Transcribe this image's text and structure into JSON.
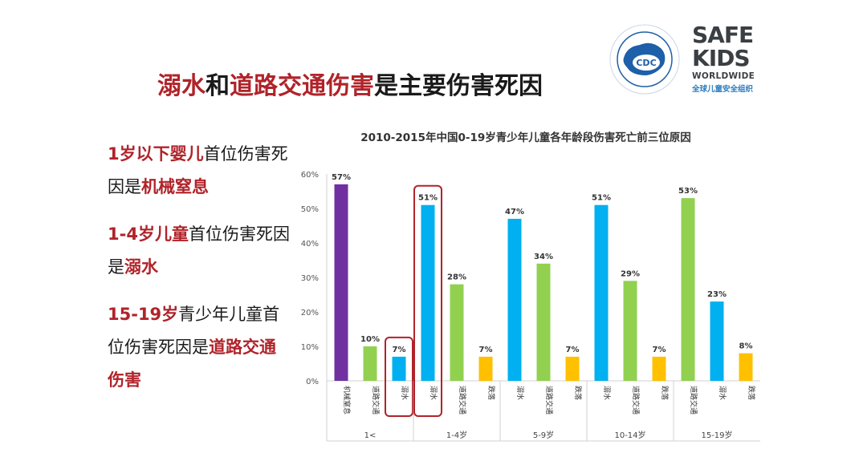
{
  "slide": {
    "title_part1": "溺水",
    "title_part2": "和",
    "title_part3": "道路交通伤害",
    "title_part4": "是主要伤害死因"
  },
  "logos": {
    "cdc_text": "CDC",
    "safekids_line1": "SAFE",
    "safekids_line2": "KIDS",
    "safekids_line3": "WORLDWIDE",
    "safekids_line4": "全球儿童安全组织"
  },
  "left_points": [
    [
      {
        "t": "1岁以下婴儿",
        "red": true
      },
      {
        "t": "首位伤害死因是",
        "red": false
      },
      {
        "t": "机械窒息",
        "red": true
      }
    ],
    [
      {
        "t": "1-4岁儿童",
        "red": true
      },
      {
        "t": "首位伤害死因是",
        "red": false
      },
      {
        "t": "溺水",
        "red": true
      }
    ],
    [
      {
        "t": "15-19岁",
        "red": true
      },
      {
        "t": "青少年儿童首位伤害死因是",
        "red": false
      },
      {
        "t": "道路交通伤害",
        "red": true
      }
    ]
  ],
  "colors": {
    "accent_red": "#b0232a",
    "mechanical": "#7030a0",
    "road": "#92d050",
    "drowning": "#00b0f0",
    "fall": "#ffc000"
  },
  "chart_data": {
    "type": "bar",
    "title": "2010-2015年中国0-19岁青少年儿童各年龄段伤害死亡前三位原因",
    "yticks": [
      "0%",
      "10%",
      "20%",
      "30%",
      "40%",
      "50%",
      "60%"
    ],
    "ylim": [
      0,
      60
    ],
    "grid": false,
    "groups": [
      {
        "label": "1<",
        "bars": [
          {
            "cause": "机械窒息",
            "value": 57,
            "label": "57%",
            "color": "#7030a0"
          },
          {
            "cause": "道路交通",
            "value": 10,
            "label": "10%",
            "color": "#92d050"
          },
          {
            "cause": "溺水",
            "value": 7,
            "label": "7%",
            "color": "#00b0f0",
            "highlight": true
          }
        ]
      },
      {
        "label": "1-4岁",
        "bars": [
          {
            "cause": "溺水",
            "value": 51,
            "label": "51%",
            "color": "#00b0f0",
            "highlight": true
          },
          {
            "cause": "道路交通",
            "value": 28,
            "label": "28%",
            "color": "#92d050"
          },
          {
            "cause": "跌落",
            "value": 7,
            "label": "7%",
            "color": "#ffc000"
          }
        ]
      },
      {
        "label": "5-9岁",
        "bars": [
          {
            "cause": "溺水",
            "value": 47,
            "label": "47%",
            "color": "#00b0f0"
          },
          {
            "cause": "道路交通",
            "value": 34,
            "label": "34%",
            "color": "#92d050"
          },
          {
            "cause": "跌落",
            "value": 7,
            "label": "7%",
            "color": "#ffc000"
          }
        ]
      },
      {
        "label": "10-14岁",
        "bars": [
          {
            "cause": "溺水",
            "value": 51,
            "label": "51%",
            "color": "#00b0f0"
          },
          {
            "cause": "道路交通",
            "value": 29,
            "label": "29%",
            "color": "#92d050"
          },
          {
            "cause": "跌落",
            "value": 7,
            "label": "7%",
            "color": "#ffc000"
          }
        ]
      },
      {
        "label": "15-19岁",
        "bars": [
          {
            "cause": "道路交通",
            "value": 53,
            "label": "53%",
            "color": "#92d050"
          },
          {
            "cause": "溺水",
            "value": 23,
            "label": "23%",
            "color": "#00b0f0"
          },
          {
            "cause": "跌落",
            "value": 8,
            "label": "8%",
            "color": "#ffc000"
          }
        ]
      }
    ]
  }
}
